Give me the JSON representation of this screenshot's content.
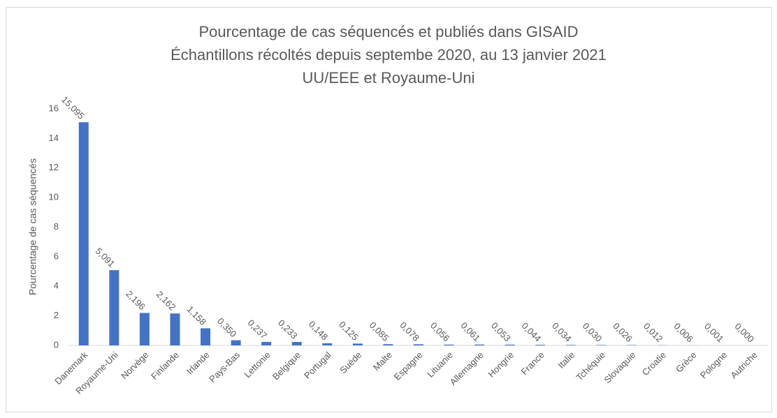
{
  "chart_data": {
    "type": "bar",
    "title": [
      "Pourcentage de cas séquencés et publiés dans GISAID",
      "Échantillons récoltés depuis septembe 2020, au 13 janvier 2021",
      "UU/EEE et Royaume-Uni"
    ],
    "y_label": "Pourcentage de cas séquencés",
    "categories": [
      "Danemark",
      "Royaume-Uni",
      "Norvège",
      "Finlande",
      "Irlande",
      "Pays-Bas",
      "Lettonie",
      "Belgique",
      "Portugal",
      "Suède",
      "Malte",
      "Espagne",
      "Lituanie",
      "Allemagne",
      "Hongrie",
      "France",
      "Italie",
      "Tchéquie",
      "Slovaquie",
      "Croatie",
      "Grèce",
      "Pologne",
      "Autriche"
    ],
    "values": [
      15.095,
      5.091,
      2.196,
      2.162,
      1.158,
      0.35,
      0.237,
      0.233,
      0.148,
      0.125,
      0.085,
      0.078,
      0.056,
      0.061,
      0.053,
      0.044,
      0.034,
      0.03,
      0.026,
      0.012,
      0.006,
      0.001,
      0.0
    ],
    "value_labels": [
      "15,095",
      "5,091",
      "2,196",
      "2,162",
      "1,158",
      "0,350",
      "0,237",
      "0,233",
      "0,148",
      "0,125",
      "0,085",
      "0,078",
      "0,056",
      "0,061",
      "0,053",
      "0,044",
      "0,034",
      "0,030",
      "0,026",
      "0,012",
      "0,006",
      "0,001",
      "0,000"
    ],
    "color": "#4472c4",
    "ylim": [
      0,
      16
    ],
    "yticks": [
      0,
      2,
      4,
      6,
      8,
      10,
      12,
      14,
      16
    ],
    "grid": false
  }
}
